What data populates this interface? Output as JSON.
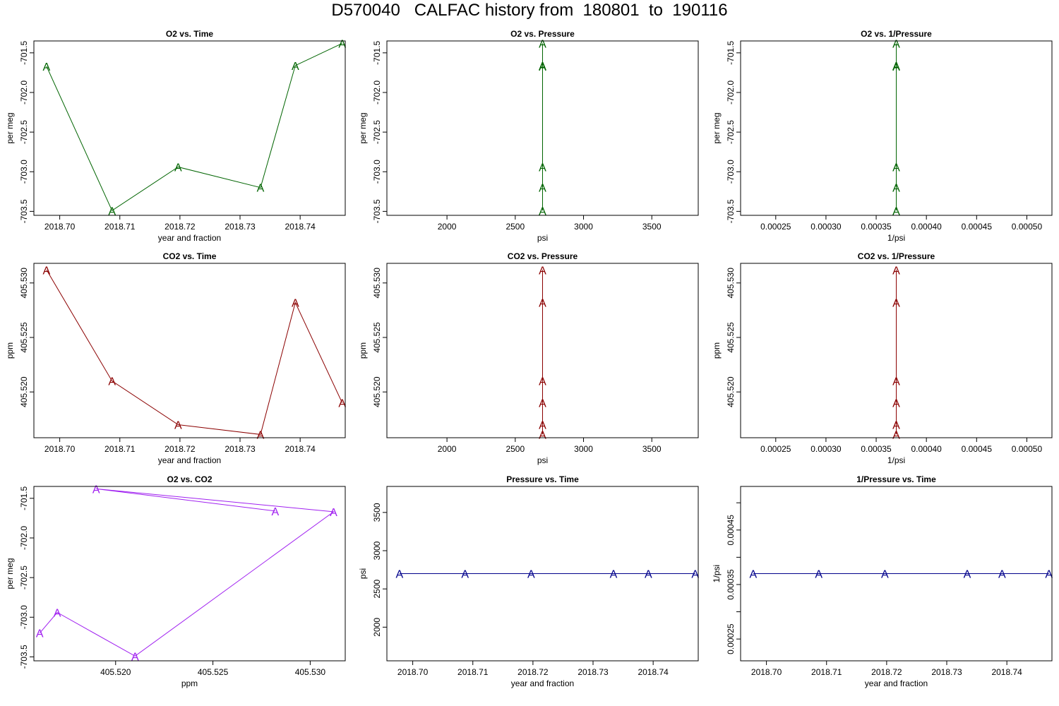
{
  "page": {
    "title": "D570040   CALFAC history from  180801  to  190116"
  },
  "chart_data": [
    {
      "type": "line",
      "title": "O2 vs. Time",
      "xlabel": "year and fraction",
      "ylabel": "per meg",
      "color": "#006400",
      "xlim": [
        2018.6957,
        2018.7475
      ],
      "ylim": [
        -703.55,
        -701.35
      ],
      "xticks": [
        2018.7,
        2018.71,
        2018.72,
        2018.73,
        2018.74
      ],
      "xtick_labels": [
        "2018.70",
        "2018.71",
        "2018.72",
        "2018.73",
        "2018.74"
      ],
      "yticks": [
        -701.5,
        -702.0,
        -702.5,
        -703.0,
        -703.5
      ],
      "ytick_labels": [
        "-701.5",
        "-702.0",
        "-702.5",
        "-703.0",
        "-703.5"
      ],
      "marker": "A",
      "x": [
        2018.6978,
        2018.7087,
        2018.7197,
        2018.7334,
        2018.7392,
        2018.747
      ],
      "y": [
        -701.67,
        -703.49,
        -702.94,
        -703.2,
        -701.66,
        -701.38
      ]
    },
    {
      "type": "line",
      "title": "O2 vs. Pressure",
      "xlabel": "psi",
      "ylabel": "per meg",
      "color": "#006400",
      "xlim": [
        1560,
        3840
      ],
      "ylim": [
        -703.55,
        -701.35
      ],
      "xticks": [
        2000,
        2500,
        3000,
        3500
      ],
      "xtick_labels": [
        "2000",
        "2500",
        "3000",
        "3500"
      ],
      "yticks": [
        -701.5,
        -702.0,
        -702.5,
        -703.0,
        -703.5
      ],
      "ytick_labels": [
        "-701.5",
        "-702.0",
        "-702.5",
        "-703.0",
        "-703.5"
      ],
      "marker": "A",
      "x": [
        2700,
        2700,
        2700,
        2700,
        2700,
        2700
      ],
      "y": [
        -701.67,
        -703.49,
        -702.94,
        -703.2,
        -701.66,
        -701.38
      ]
    },
    {
      "type": "line",
      "title": "O2 vs. 1/Pressure",
      "xlabel": "1/psi",
      "ylabel": "per meg",
      "color": "#006400",
      "xlim": [
        0.000215,
        0.000525
      ],
      "ylim": [
        -703.55,
        -701.35
      ],
      "xticks": [
        0.00025,
        0.0003,
        0.00035,
        0.0004,
        0.00045,
        0.0005
      ],
      "xtick_labels": [
        "0.00025",
        "0.00030",
        "0.00035",
        "0.00040",
        "0.00045",
        "0.00050"
      ],
      "yticks": [
        -701.5,
        -702.0,
        -702.5,
        -703.0,
        -703.5
      ],
      "ytick_labels": [
        "-701.5",
        "-702.0",
        "-702.5",
        "-703.0",
        "-703.5"
      ],
      "marker": "A",
      "x": [
        0.00037,
        0.00037,
        0.00037,
        0.00037,
        0.00037,
        0.00037
      ],
      "y": [
        -701.67,
        -703.49,
        -702.94,
        -703.2,
        -701.66,
        -701.38
      ]
    },
    {
      "type": "line",
      "title": "CO2 vs. Time",
      "xlabel": "year and fraction",
      "ylabel": "ppm",
      "color": "#8b0000",
      "xlim": [
        2018.6957,
        2018.7475
      ],
      "ylim": [
        405.5158,
        405.5318
      ],
      "xticks": [
        2018.7,
        2018.71,
        2018.72,
        2018.73,
        2018.74
      ],
      "xtick_labels": [
        "2018.70",
        "2018.71",
        "2018.72",
        "2018.73",
        "2018.74"
      ],
      "yticks": [
        405.52,
        405.525,
        405.53
      ],
      "ytick_labels": [
        "405.520",
        "405.525",
        "405.530"
      ],
      "marker": "A",
      "x": [
        2018.6978,
        2018.7087,
        2018.7197,
        2018.7334,
        2018.7392,
        2018.747
      ],
      "y": [
        405.5312,
        405.521,
        405.517,
        405.5161,
        405.5282,
        405.519
      ]
    },
    {
      "type": "line",
      "title": "CO2 vs. Pressure",
      "xlabel": "psi",
      "ylabel": "ppm",
      "color": "#8b0000",
      "xlim": [
        1560,
        3840
      ],
      "ylim": [
        405.5158,
        405.5318
      ],
      "xticks": [
        2000,
        2500,
        3000,
        3500
      ],
      "xtick_labels": [
        "2000",
        "2500",
        "3000",
        "3500"
      ],
      "yticks": [
        405.52,
        405.525,
        405.53
      ],
      "ytick_labels": [
        "405.520",
        "405.525",
        "405.530"
      ],
      "marker": "A",
      "x": [
        2700,
        2700,
        2700,
        2700,
        2700,
        2700
      ],
      "y": [
        405.5312,
        405.521,
        405.517,
        405.5161,
        405.5282,
        405.519
      ]
    },
    {
      "type": "line",
      "title": "CO2 vs. 1/Pressure",
      "xlabel": "1/psi",
      "ylabel": "ppm",
      "color": "#8b0000",
      "xlim": [
        0.000215,
        0.000525
      ],
      "ylim": [
        405.5158,
        405.5318
      ],
      "xticks": [
        0.00025,
        0.0003,
        0.00035,
        0.0004,
        0.00045,
        0.0005
      ],
      "xtick_labels": [
        "0.00025",
        "0.00030",
        "0.00035",
        "0.00040",
        "0.00045",
        "0.00050"
      ],
      "yticks": [
        405.52,
        405.525,
        405.53
      ],
      "ytick_labels": [
        "405.520",
        "405.525",
        "405.530"
      ],
      "marker": "A",
      "x": [
        0.00037,
        0.00037,
        0.00037,
        0.00037,
        0.00037,
        0.00037
      ],
      "y": [
        405.5312,
        405.521,
        405.517,
        405.5161,
        405.5282,
        405.519
      ]
    },
    {
      "type": "line",
      "title": "O2 vs. CO2",
      "xlabel": "ppm",
      "ylabel": "per meg",
      "color": "#a020f0",
      "xlim": [
        405.5158,
        405.5318
      ],
      "ylim": [
        -703.55,
        -701.35
      ],
      "xticks": [
        405.52,
        405.525,
        405.53
      ],
      "xtick_labels": [
        "405.520",
        "405.525",
        "405.530"
      ],
      "yticks": [
        -701.5,
        -702.0,
        -702.5,
        -703.0,
        -703.5
      ],
      "ytick_labels": [
        "-701.5",
        "-702.0",
        "-702.5",
        "-703.0",
        "-703.5"
      ],
      "marker": "A",
      "x": [
        405.5161,
        405.517,
        405.521,
        405.5312,
        405.519,
        405.5282
      ],
      "y": [
        -703.2,
        -702.94,
        -703.49,
        -701.67,
        -701.38,
        -701.66
      ]
    },
    {
      "type": "line",
      "title": "Pressure vs. Time",
      "xlabel": "year and fraction",
      "ylabel": "psi",
      "color": "#00008b",
      "xlim": [
        2018.6957,
        2018.7475
      ],
      "ylim": [
        1560,
        3840
      ],
      "xticks": [
        2018.7,
        2018.71,
        2018.72,
        2018.73,
        2018.74
      ],
      "xtick_labels": [
        "2018.70",
        "2018.71",
        "2018.72",
        "2018.73",
        "2018.74"
      ],
      "yticks": [
        2000,
        2500,
        3000,
        3500
      ],
      "ytick_labels": [
        "2000",
        "2500",
        "3000",
        "3500"
      ],
      "marker": "A",
      "x": [
        2018.6978,
        2018.7087,
        2018.7197,
        2018.7334,
        2018.7392,
        2018.747
      ],
      "y": [
        2700,
        2700,
        2700,
        2700,
        2700,
        2700
      ]
    },
    {
      "type": "line",
      "title": "1/Pressure vs. Time",
      "xlabel": "year and fraction",
      "ylabel": "1/psi",
      "color": "#00008b",
      "xlim": [
        2018.6957,
        2018.7475
      ],
      "ylim": [
        0.00021,
        0.00053
      ],
      "xticks": [
        2018.7,
        2018.71,
        2018.72,
        2018.73,
        2018.74
      ],
      "xtick_labels": [
        "2018.70",
        "2018.71",
        "2018.72",
        "2018.73",
        "2018.74"
      ],
      "yticks": [
        0.00025,
        0.0003,
        0.00035,
        0.0004,
        0.00045,
        0.0005
      ],
      "ytick_labels": [
        "0.00025",
        "",
        "0.00035",
        "",
        "0.00045",
        ""
      ],
      "marker": "A",
      "x": [
        2018.6978,
        2018.7087,
        2018.7197,
        2018.7334,
        2018.7392,
        2018.747
      ],
      "y": [
        0.00037,
        0.00037,
        0.00037,
        0.00037,
        0.00037,
        0.00037
      ]
    }
  ]
}
